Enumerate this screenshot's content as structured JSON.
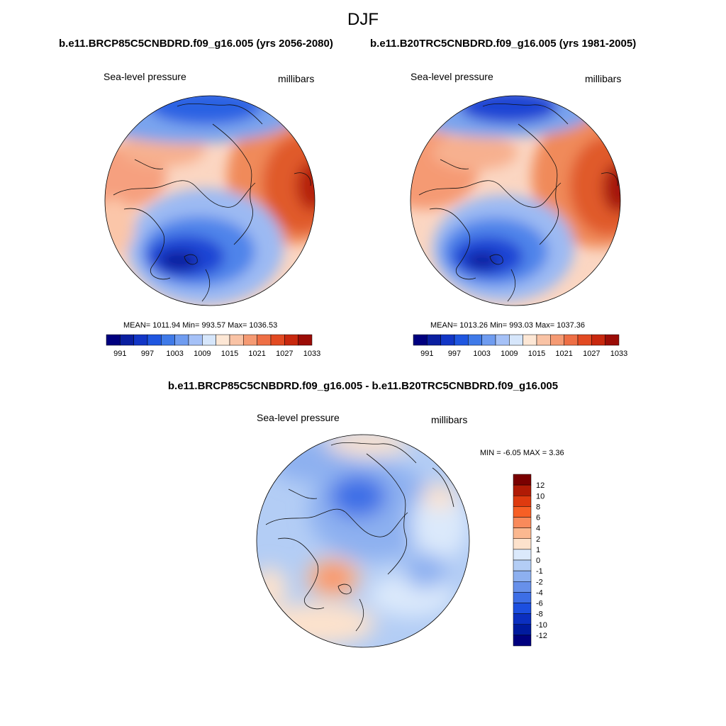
{
  "title": "DJF",
  "panels": [
    {
      "header": "b.e11.BRCP85C5CNBDRD.f09_g16.005 (yrs 2056-2080)",
      "variable": "Sea-level pressure",
      "units": "millibars",
      "stats": "MEAN= 1011.94  Min= 993.57  Max= 1036.53"
    },
    {
      "header": "b.e11.B20TRC5CNBDRD.f09_g16.005 (yrs 1981-2005)",
      "variable": "Sea-level pressure",
      "units": "millibars",
      "stats": "MEAN= 1013.26  Min= 993.03  Max= 1037.36"
    }
  ],
  "abs_colorbar": {
    "colors": [
      "#00007f",
      "#0a1fa0",
      "#1236c6",
      "#1f56e0",
      "#3f7ae8",
      "#6f9cf0",
      "#a5c1f7",
      "#d6e6fb",
      "#fde7d5",
      "#f9c3a5",
      "#f59a73",
      "#ee6f45",
      "#e24a22",
      "#c8280e",
      "#9b0c06"
    ],
    "labels": [
      "991",
      "997",
      "1003",
      "1009",
      "1015",
      "1021",
      "1027",
      "1033"
    ]
  },
  "diff": {
    "header": "b.e11.BRCP85C5CNBDRD.f09_g16.005 - b.e11.B20TRC5CNBDRD.f09_g16.005",
    "variable": "Sea-level pressure",
    "units": "millibars",
    "minmax": "MIN =  -6.05 MAX =   3.36"
  },
  "diff_colorbar": {
    "colors": [
      "#7a0000",
      "#b01a05",
      "#de3a0f",
      "#f75f25",
      "#f98a5b",
      "#fbb890",
      "#fde2cc",
      "#dbe9fb",
      "#b3cdf5",
      "#8db0f0",
      "#6790ea",
      "#3d6ee6",
      "#1c4fe0",
      "#0b2fc0",
      "#001a9e",
      "#00007f"
    ],
    "labels": [
      "12",
      "10",
      "8",
      "6",
      "4",
      "2",
      "1",
      "0",
      "-1",
      "-2",
      "-4",
      "-6",
      "-8",
      "-10",
      "-12"
    ]
  }
}
